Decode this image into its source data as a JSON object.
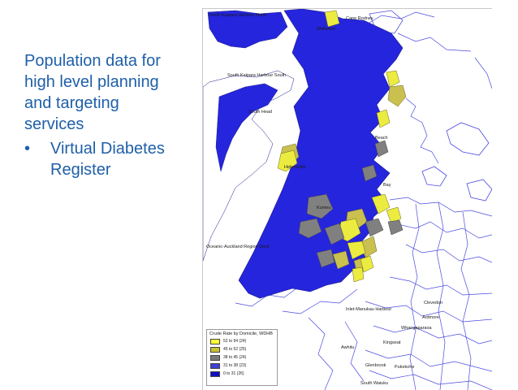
{
  "slide": {
    "heading_lines": [
      "Population data for",
      "high level planning",
      "and targeting",
      "services"
    ],
    "bullet_symbol": "•",
    "bullet_lines": [
      "Virtual Diabetes",
      "Register"
    ]
  },
  "colors": {
    "text": "#1f5fa8",
    "land_high": "#2525dd",
    "yellow": "#e8e84a",
    "olive": "#c9c050",
    "grey": "#808080",
    "outline": "#4a4ae0",
    "water": "#ffffff"
  },
  "map": {
    "place_labels": {
      "north_kaipara": "North Kaipara Harbour North",
      "cape_rodney": "Cape Rodney",
      "wellsford": "Wellsford",
      "south_kaipara": "South Kaipara Harbour South",
      "south_head": "South Head",
      "helensville": "Helensville",
      "kumeu": "Kumeu",
      "oceanic": "Oceanic-Auckland Region West",
      "clevedon": "Clevedon",
      "manukau_harbour": "Inlet-Manukau Harbour",
      "kingseat": "Kingseat",
      "awhitu": "Awhitu",
      "pukekohe": "Pukekohe",
      "glenbrook": "Glenbrook",
      "south_waiuku": "South Waiuku",
      "ardmore": "Ardmore",
      "whangapoua": "Whangaparaoa",
      "beach": "Beach",
      "bay": "Bay"
    }
  },
  "legend": {
    "title": "Crude Rate by Domicile, WDHB",
    "items": [
      {
        "label": "52  to  94  (24)",
        "color": "#ffff33"
      },
      {
        "label": "45  to  52  (25)",
        "color": "#c8c030"
      },
      {
        "label": "38  to  45  (24)",
        "color": "#7a7a7a"
      },
      {
        "label": "31  to  38  (23)",
        "color": "#4040d8"
      },
      {
        "label": "0  to  31  (26)",
        "color": "#1010c8"
      }
    ]
  }
}
